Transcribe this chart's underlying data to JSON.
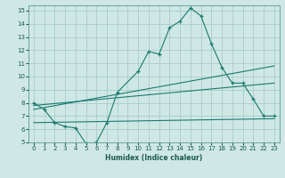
{
  "xlabel": "Humidex (Indice chaleur)",
  "background_color": "#cfe8e5",
  "grid_color": "#a8ccc9",
  "line_color": "#1a7a6e",
  "xlim": [
    -0.5,
    23.5
  ],
  "ylim": [
    5,
    15.4
  ],
  "xticks": [
    0,
    1,
    2,
    3,
    4,
    5,
    6,
    7,
    8,
    9,
    10,
    11,
    12,
    13,
    14,
    15,
    16,
    17,
    18,
    19,
    20,
    21,
    22,
    23
  ],
  "yticks": [
    5,
    6,
    7,
    8,
    9,
    10,
    11,
    12,
    13,
    14,
    15
  ],
  "series1_x": [
    0,
    1,
    2,
    3,
    4,
    5,
    6,
    7,
    8,
    10,
    11,
    12,
    13,
    14,
    15,
    16,
    17,
    18,
    19,
    20,
    21,
    22,
    23
  ],
  "series1_y": [
    8.0,
    7.5,
    6.5,
    6.2,
    6.1,
    4.9,
    5.0,
    6.5,
    8.8,
    10.4,
    11.9,
    11.7,
    13.7,
    14.2,
    15.2,
    14.6,
    12.5,
    10.7,
    9.5,
    9.5,
    8.3,
    7.0,
    7.0
  ],
  "series2_x": [
    0,
    23
  ],
  "series2_y": [
    7.5,
    10.8
  ],
  "series3_x": [
    0,
    23
  ],
  "series3_y": [
    6.5,
    6.8
  ],
  "series4_x": [
    0,
    23
  ],
  "series4_y": [
    7.8,
    9.5
  ]
}
